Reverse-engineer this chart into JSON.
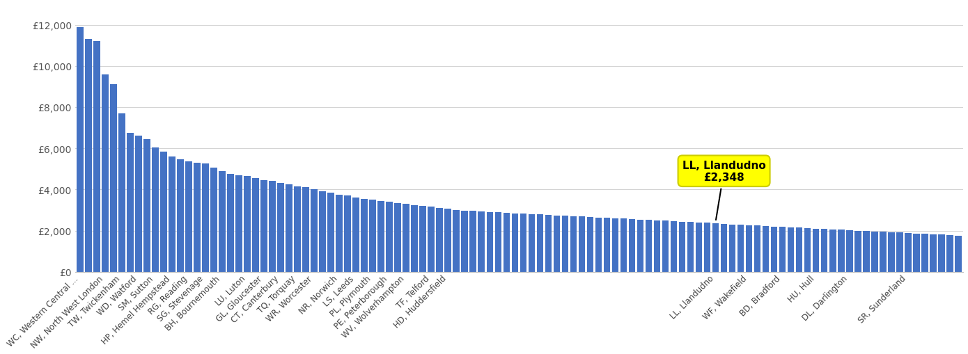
{
  "bar_color": "#4472c4",
  "background_color": "#ffffff",
  "grid_color": "#d3d3d3",
  "annotation_text": "LL, Llandudno\n£2,348",
  "annotation_fc": "#ffff00",
  "annotation_ec": "#cccc00",
  "ytick_labels": [
    "£0",
    "£2,000",
    "£4,000",
    "£6,000",
    "£8,000",
    "£10,000",
    "£12,000"
  ],
  "yticks": [
    0,
    2000,
    4000,
    6000,
    8000,
    10000,
    12000
  ],
  "ylim": [
    0,
    13000
  ],
  "values": [
    11900,
    11300,
    11200,
    9600,
    9100,
    7700,
    6750,
    6600,
    6450,
    6050,
    5850,
    5600,
    5450,
    5350,
    5300,
    5250,
    5050,
    4900,
    4750,
    4700,
    4650,
    4550,
    4450,
    4400,
    4300,
    4250,
    4150,
    4100,
    4000,
    3900,
    3850,
    3750,
    3700,
    3600,
    3550,
    3500,
    3450,
    3400,
    3350,
    3300,
    3250,
    3200,
    3150,
    3100,
    3050,
    3000,
    2980,
    2950,
    2920,
    2900,
    2880,
    2860,
    2840,
    2820,
    2800,
    2780,
    2760,
    2740,
    2720,
    2700,
    2680,
    2660,
    2640,
    2620,
    2600,
    2580,
    2560,
    2540,
    2520,
    2500,
    2480,
    2460,
    2440,
    2420,
    2400,
    2380,
    2348,
    2320,
    2300,
    2280,
    2260,
    2240,
    2220,
    2200,
    2180,
    2160,
    2140,
    2120,
    2100,
    2080,
    2060,
    2040,
    2020,
    2000,
    1980,
    1960,
    1940,
    1920,
    1900,
    1880,
    1860,
    1840,
    1820,
    1800,
    1780,
    1750
  ],
  "tick_map": {
    "0": "WC, Western Central ...",
    "3": "NW, North West London",
    "5": "TW, Twickenham",
    "7": "WD, Watford",
    "9": "SM, Sutton",
    "11": "HP, Hemel Hempstead",
    "13": "RG, Reading",
    "15": "SG, Stevenage",
    "17": "BH, Bournemouth",
    "20": "LU, Luton",
    "22": "GL, Gloucester",
    "24": "CT, Canterbury",
    "26": "TQ, Torquay",
    "28": "WR, Worcester",
    "31": "NR, Norwich",
    "33": "LS, Leeds",
    "35": "PL, Plymouth",
    "37": "PE, Peterborough",
    "39": "WV, Wolverhampton",
    "42": "TF, Telford",
    "44": "HD, Huddersfield",
    "76": "LL, Llandudno",
    "80": "WF, Wakefield",
    "84": "BD, Bradford",
    "88": "HU, Hull",
    "92": "DL, Darlington",
    "99": "SR, Sunderland"
  }
}
